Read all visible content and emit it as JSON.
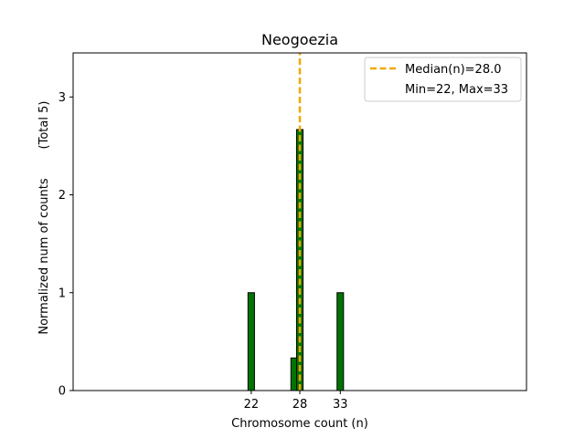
{
  "chart_data": {
    "type": "bar",
    "title": "Neogoezia",
    "xlabel": "Chromosome count (n)",
    "ylabel": "Normalized num of counts",
    "ylabel_note": "(Total 5)",
    "xlim": [
      0,
      56
    ],
    "ylim": [
      0,
      3.45
    ],
    "xticks": [
      22,
      28,
      33
    ],
    "yticks": [
      0,
      1,
      2,
      3
    ],
    "bar_width": 0.8,
    "bar_color": "#007400",
    "bar_edge_color": "#000000",
    "bars": [
      {
        "x": 22,
        "value": 1.0
      },
      {
        "x": 27.3,
        "value": 0.333
      },
      {
        "x": 28,
        "value": 2.667
      },
      {
        "x": 33,
        "value": 1.0
      }
    ],
    "median": {
      "value": 28.0,
      "color": "#f0a800",
      "style": "dashed"
    },
    "legend": {
      "position": "top-right",
      "entries": [
        {
          "label": "Median(n)=28.0",
          "marker": "dashed-line"
        },
        {
          "label": "Min=22, Max=33",
          "marker": "none"
        }
      ]
    }
  }
}
